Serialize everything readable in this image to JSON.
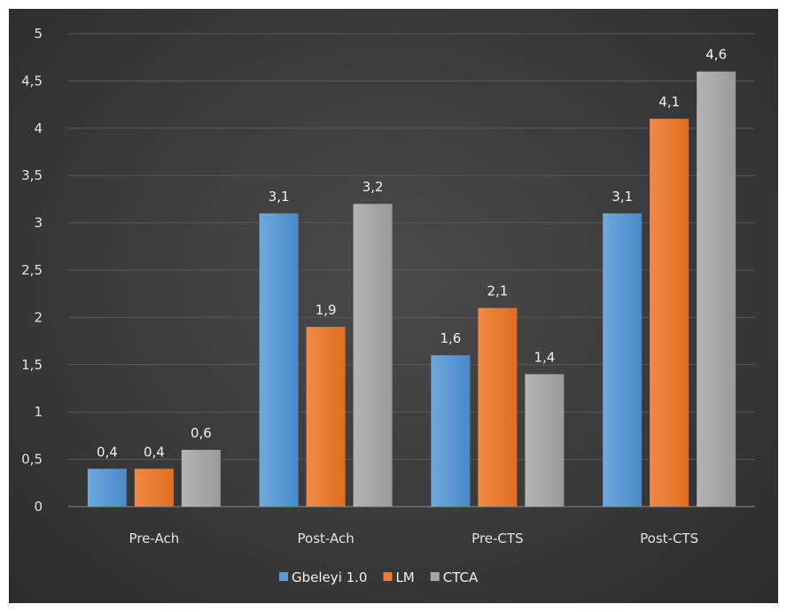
{
  "chart_data": {
    "type": "bar",
    "title": "",
    "xlabel": "",
    "ylabel": "",
    "ylim": [
      0,
      5
    ],
    "ytick_step": 0.5,
    "decimal_separator": ",",
    "grid": true,
    "legend_position": "bottom",
    "categories": [
      "Pre-Ach",
      "Post-Ach",
      "Pre-CTS",
      "Post-CTS"
    ],
    "series": [
      {
        "name": "Gbeleyi 1.0",
        "color": "#5b9bd5",
        "values": [
          0.4,
          3.1,
          1.6,
          3.1
        ]
      },
      {
        "name": "LM",
        "color": "#ed7d31",
        "values": [
          0.4,
          1.9,
          2.1,
          4.1
        ]
      },
      {
        "name": "CTCA",
        "color": "#a5a5a5",
        "values": [
          0.6,
          3.2,
          1.4,
          4.6
        ]
      }
    ]
  }
}
